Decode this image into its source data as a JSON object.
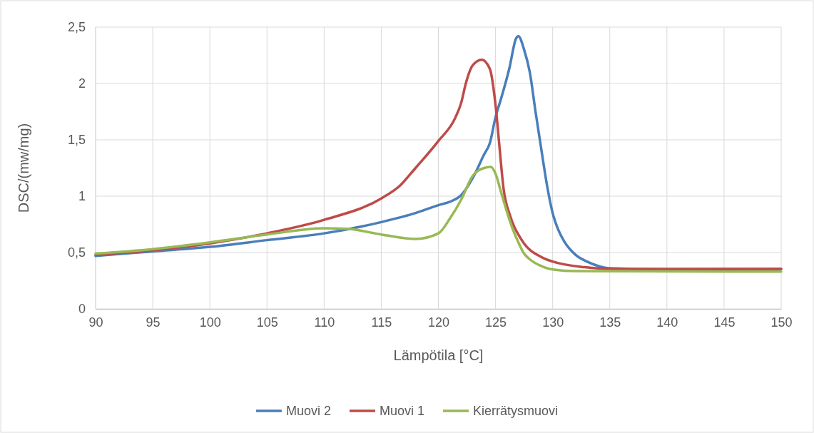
{
  "chart_data": {
    "type": "line",
    "xlabel": "Lämpötila [°C]",
    "ylabel": "DSC/(mw/mg)",
    "xlim": [
      90,
      150
    ],
    "ylim": [
      0,
      2.5
    ],
    "xticks": [
      90,
      95,
      100,
      105,
      110,
      115,
      120,
      125,
      130,
      135,
      140,
      145,
      150
    ],
    "yticks": [
      0,
      {
        "value": 0.5,
        "label": "0,5"
      },
      1,
      {
        "value": 1.5,
        "label": "1,5"
      },
      2,
      {
        "value": 2.5,
        "label": "2,5"
      }
    ],
    "grid": true,
    "legend": "bottom",
    "marker": "none",
    "line_style": "solid",
    "series": [
      {
        "name": "Muovi 2",
        "color": "#4a7ebb",
        "x": [
          90,
          95,
          100,
          105,
          110,
          115,
          118,
          120,
          121,
          122,
          123,
          124,
          124.5,
          125,
          125.5,
          126.2,
          126.8,
          127,
          127.5,
          128,
          128.5,
          129,
          129.5,
          130,
          130.5,
          131,
          132,
          133,
          134,
          135,
          140,
          150
        ],
        "values": [
          0.47,
          0.51,
          0.55,
          0.61,
          0.67,
          0.77,
          0.85,
          0.92,
          0.95,
          1.01,
          1.16,
          1.37,
          1.47,
          1.7,
          1.87,
          2.13,
          2.4,
          2.42,
          2.3,
          2.1,
          1.75,
          1.42,
          1.1,
          0.85,
          0.7,
          0.6,
          0.48,
          0.42,
          0.38,
          0.36,
          0.35,
          0.355
        ]
      },
      {
        "name": "Muovi 1",
        "color": "#be4b48",
        "x": [
          90,
          95,
          100,
          105,
          110,
          115,
          116.6,
          118,
          120,
          121.5,
          122,
          122.4,
          123,
          123.8,
          124.5,
          125,
          125.3,
          125.7,
          126.3,
          127.3,
          129,
          130,
          132.8,
          135,
          150
        ],
        "values": [
          0.48,
          0.52,
          0.58,
          0.67,
          0.79,
          0.98,
          1.09,
          1.25,
          1.49,
          1.7,
          1.83,
          2.0,
          2.16,
          2.21,
          2.13,
          1.81,
          1.49,
          1.07,
          0.82,
          0.61,
          0.46,
          0.42,
          0.37,
          0.355,
          0.355
        ]
      },
      {
        "name": "Kierrätysmuovi",
        "color": "#98b954",
        "x": [
          90,
          95,
          100,
          105,
          110,
          112,
          115,
          118,
          120,
          121,
          122,
          123,
          124,
          124.6,
          125,
          125.5,
          126,
          126.5,
          127,
          127.5,
          128,
          129,
          130,
          132,
          150
        ],
        "values": [
          0.49,
          0.53,
          0.59,
          0.66,
          0.715,
          0.71,
          0.66,
          0.62,
          0.67,
          0.8,
          0.97,
          1.18,
          1.25,
          1.26,
          1.2,
          1.03,
          0.86,
          0.71,
          0.59,
          0.49,
          0.44,
          0.38,
          0.35,
          0.335,
          0.33
        ]
      }
    ]
  }
}
